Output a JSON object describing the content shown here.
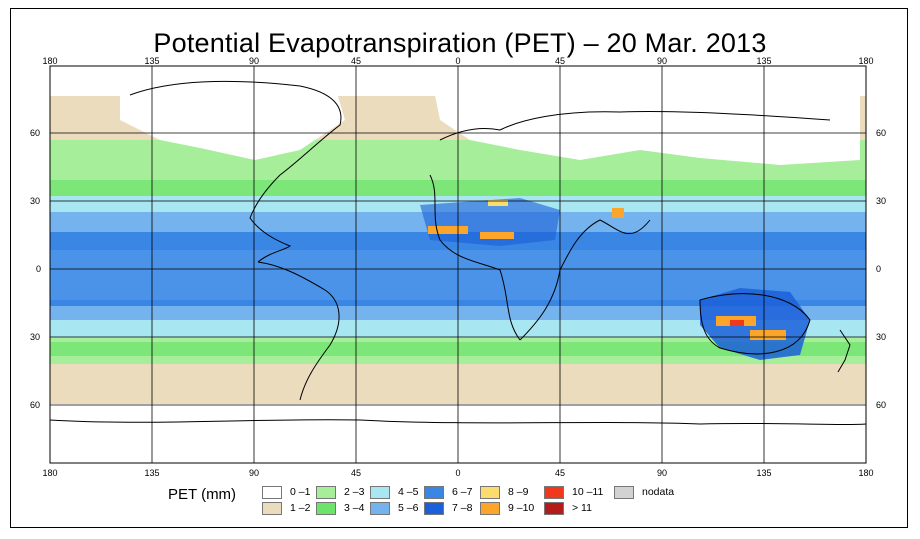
{
  "title": "Potential Evapotranspiration (PET) – 20 Mar. 2013",
  "map": {
    "lon_ticks": [
      "180",
      "135",
      "90",
      "45",
      "0",
      "45",
      "90",
      "135",
      "180"
    ],
    "lat_ticks": [
      "60",
      "30",
      "0",
      "30",
      "60"
    ]
  },
  "legend": {
    "title": "PET (mm)",
    "items": [
      {
        "label": "0 –1",
        "color": "#ffffff"
      },
      {
        "label": "1 –2",
        "color": "#ecdcbe"
      },
      {
        "label": "2 –3",
        "color": "#a6ee9a"
      },
      {
        "label": "3 –4",
        "color": "#6ce36a"
      },
      {
        "label": "4 –5",
        "color": "#a8e6f2"
      },
      {
        "label": "5 –6",
        "color": "#74b3ee"
      },
      {
        "label": "6 –7",
        "color": "#3a86e4"
      },
      {
        "label": "7 –8",
        "color": "#1b5fd9"
      },
      {
        "label": "8 –9",
        "color": "#fcdc6e"
      },
      {
        "label": "9 –10",
        "color": "#fba62a"
      },
      {
        "label": "10 –11",
        "color": "#f2381c"
      },
      {
        "label": "> 11",
        "color": "#b41c1c"
      },
      {
        "label": "nodata",
        "color": "#d2d2d2"
      }
    ]
  }
}
